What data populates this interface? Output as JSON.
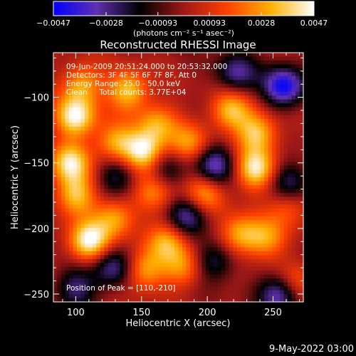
{
  "chart_data": {
    "type": "heatmap",
    "title": "Reconstructed RHESSI Image",
    "xlabel": "Heliocentric X (arcsec)",
    "ylabel": "Heliocentric Y (arcsec)",
    "xlim": [
      83,
      273
    ],
    "ylim": [
      -256,
      -66
    ],
    "x_ticks": [
      "100",
      "150",
      "200",
      "250"
    ],
    "x_tick_values": [
      100,
      150,
      200,
      250
    ],
    "y_ticks": [
      "−100",
      "−150",
      "−200",
      "−250"
    ],
    "y_tick_values": [
      -100,
      -150,
      -200,
      -250
    ],
    "colorbar": {
      "range": [
        -0.0047,
        0.0047
      ],
      "tick_labels": [
        "−0.0047",
        "−0.0028",
        "−0.00093",
        "0.00093",
        "0.0028",
        "0.0047"
      ],
      "tick_values": [
        -0.0047,
        -0.0028,
        -0.00093,
        0.00093,
        0.0028,
        0.0047
      ],
      "unit_label": "(photons cm⁻² s⁻¹ asec⁻²)",
      "colormap": [
        "#0000ff",
        "#6030b0",
        "#000000",
        "#a01818",
        "#ff4000",
        "#ffb000",
        "#ffffff"
      ]
    },
    "annotations": {
      "time_range": "09-Jun-2009 20:51:24.000 to 20:53:32.000",
      "detectors": "Detectors: 3F 4F 5F 6F 7F 8F, Att 0",
      "energy_range": "Energy Range: 25.0 - 50.0 keV",
      "method_counts": "Clean     Total counts: 3.77E+04",
      "peak": "Position of Peak = [110,-210]"
    },
    "peak": {
      "x": 110,
      "y": -210
    },
    "blobs": [
      {
        "x": 100,
        "y": -115,
        "a": 0.0045
      },
      {
        "x": 96,
        "y": -150,
        "a": 0.004
      },
      {
        "x": 105,
        "y": -90,
        "a": 0.003
      },
      {
        "x": 140,
        "y": -95,
        "a": 0.0036
      },
      {
        "x": 162,
        "y": -120,
        "a": 0.0028
      },
      {
        "x": 130,
        "y": -135,
        "a": 0.003
      },
      {
        "x": 152,
        "y": -142,
        "a": 0.0046
      },
      {
        "x": 186,
        "y": -135,
        "a": 0.0026
      },
      {
        "x": 218,
        "y": -110,
        "a": 0.0034
      },
      {
        "x": 238,
        "y": -127,
        "a": 0.0036
      },
      {
        "x": 198,
        "y": -173,
        "a": 0.003
      },
      {
        "x": 237,
        "y": -155,
        "a": 0.0042
      },
      {
        "x": 100,
        "y": -175,
        "a": 0.0034
      },
      {
        "x": 110,
        "y": -210,
        "a": 0.0047
      },
      {
        "x": 130,
        "y": -192,
        "a": 0.003
      },
      {
        "x": 160,
        "y": -172,
        "a": 0.0024
      },
      {
        "x": 170,
        "y": -210,
        "a": 0.003
      },
      {
        "x": 225,
        "y": -205,
        "a": 0.0032
      },
      {
        "x": 245,
        "y": -208,
        "a": 0.0026
      },
      {
        "x": 152,
        "y": -232,
        "a": 0.003
      },
      {
        "x": 182,
        "y": -230,
        "a": 0.0026
      },
      {
        "x": 262,
        "y": -183,
        "a": 0.002
      },
      {
        "x": 268,
        "y": -240,
        "a": 0.002
      },
      {
        "x": 258,
        "y": -92,
        "a": -0.0046
      },
      {
        "x": 222,
        "y": -82,
        "a": -0.003
      },
      {
        "x": 205,
        "y": -152,
        "a": -0.0036
      },
      {
        "x": 185,
        "y": -190,
        "a": -0.0032
      },
      {
        "x": 205,
        "y": -225,
        "a": -0.0026
      },
      {
        "x": 168,
        "y": -155,
        "a": -0.002
      },
      {
        "x": 128,
        "y": -230,
        "a": -0.003
      },
      {
        "x": 100,
        "y": -245,
        "a": -0.0026
      },
      {
        "x": 255,
        "y": -250,
        "a": -0.0036
      },
      {
        "x": 132,
        "y": -160,
        "a": -0.0024
      },
      {
        "x": 262,
        "y": -165,
        "a": -0.0026
      }
    ]
  },
  "footer": {
    "date": "9-May-2022 03:00"
  }
}
